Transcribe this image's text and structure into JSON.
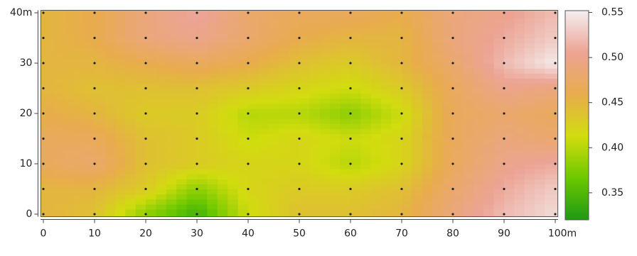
{
  "chart_data": {
    "type": "contour",
    "x": [
      0,
      10,
      20,
      30,
      40,
      50,
      60,
      70,
      80,
      90,
      100
    ],
    "y": [
      0,
      5,
      10,
      15,
      20,
      25,
      30,
      35,
      40
    ],
    "z": [
      [
        0.45,
        0.44,
        0.38,
        0.34,
        0.41,
        0.44,
        0.44,
        0.45,
        0.49,
        0.52,
        0.54
      ],
      [
        0.45,
        0.45,
        0.43,
        0.38,
        0.42,
        0.43,
        0.43,
        0.44,
        0.48,
        0.51,
        0.53
      ],
      [
        0.47,
        0.48,
        0.44,
        0.43,
        0.42,
        0.42,
        0.4,
        0.42,
        0.47,
        0.5,
        0.51
      ],
      [
        0.47,
        0.47,
        0.44,
        0.43,
        0.41,
        0.42,
        0.41,
        0.42,
        0.47,
        0.49,
        0.48
      ],
      [
        0.46,
        0.45,
        0.43,
        0.43,
        0.4,
        0.4,
        0.38,
        0.41,
        0.47,
        0.48,
        0.47
      ],
      [
        0.45,
        0.44,
        0.44,
        0.44,
        0.43,
        0.42,
        0.41,
        0.43,
        0.47,
        0.5,
        0.49
      ],
      [
        0.45,
        0.45,
        0.46,
        0.47,
        0.46,
        0.44,
        0.43,
        0.45,
        0.48,
        0.52,
        0.55
      ],
      [
        0.45,
        0.46,
        0.49,
        0.5,
        0.48,
        0.46,
        0.45,
        0.45,
        0.49,
        0.51,
        0.53
      ],
      [
        0.45,
        0.46,
        0.49,
        0.51,
        0.48,
        0.47,
        0.47,
        0.46,
        0.49,
        0.5,
        0.52
      ]
    ],
    "xlim": [
      -0.5,
      100.5
    ],
    "ylim": [
      -0.5,
      40.5
    ],
    "xticks": [
      0,
      10,
      20,
      30,
      40,
      50,
      60,
      70,
      80,
      90,
      {
        "value": 100,
        "label": "100m"
      }
    ],
    "yticks": [
      0,
      10,
      20,
      30,
      {
        "value": 40,
        "label": "40m"
      }
    ],
    "colormap": [
      "#1e9a14",
      "#6cc800",
      "#d2dc0e",
      "#e8ac4c",
      "#eca494",
      "#f4eef0"
    ],
    "colorbar": {
      "lim": [
        0.32,
        0.552
      ],
      "ticks": [
        0.35,
        0.4,
        0.45,
        0.5,
        0.55
      ]
    }
  }
}
